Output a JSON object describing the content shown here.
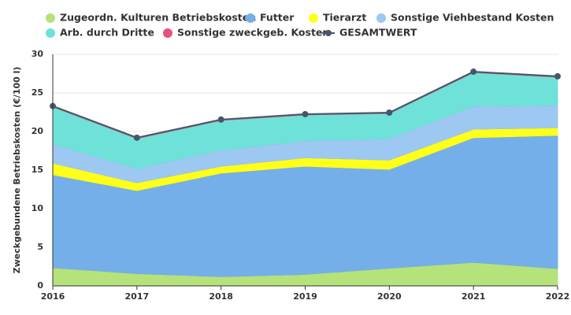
{
  "chart_data": {
    "type": "stacked-area",
    "y_label": "Zweckgebundene Betriebskosten (€/100 l)",
    "x": [
      2016,
      2017,
      2018,
      2019,
      2020,
      2021,
      2022
    ],
    "xlim": [
      2016,
      2022
    ],
    "xticks": [
      2016,
      2017,
      2018,
      2019,
      2020,
      2021,
      2022
    ],
    "ylim": [
      0,
      30
    ],
    "yticks": [
      0,
      5,
      10,
      15,
      20,
      25,
      30
    ],
    "grid": true,
    "series": [
      {
        "name": "Zugeordn. Kulturen Betriebskosten",
        "color": "#b5e27a",
        "values": [
          2.35,
          1.6,
          1.2,
          1.5,
          2.3,
          3.05,
          2.25
        ]
      },
      {
        "name": "Futter",
        "color": "#74afea",
        "values": [
          12.05,
          10.75,
          13.4,
          14.0,
          12.8,
          16.15,
          17.25
        ]
      },
      {
        "name": "Tierarzt",
        "color": "#ffff1a",
        "values": [
          1.5,
          1.0,
          0.9,
          1.1,
          1.2,
          1.1,
          1.0
        ]
      },
      {
        "name": "Sonstige Viehbestand Kosten",
        "color": "#9cc8f2",
        "values": [
          2.5,
          1.85,
          2.1,
          2.2,
          2.8,
          3.0,
          2.9
        ]
      },
      {
        "name": "Arb. durch Dritte",
        "color": "#6ee2d8",
        "values": [
          4.8,
          3.9,
          3.85,
          3.35,
          3.25,
          4.35,
          3.65
        ]
      },
      {
        "name": "Sonstige zweckgeb. Kosten",
        "color": "#e8527a",
        "values": [
          0.1,
          0.1,
          0.1,
          0.1,
          0.1,
          0.1,
          0.1
        ]
      },
      {
        "name": "GESAMTWERT",
        "color": "#46576a",
        "type": "line",
        "values": [
          23.3,
          19.2,
          21.55,
          22.25,
          22.45,
          27.75,
          27.15
        ]
      }
    ]
  }
}
